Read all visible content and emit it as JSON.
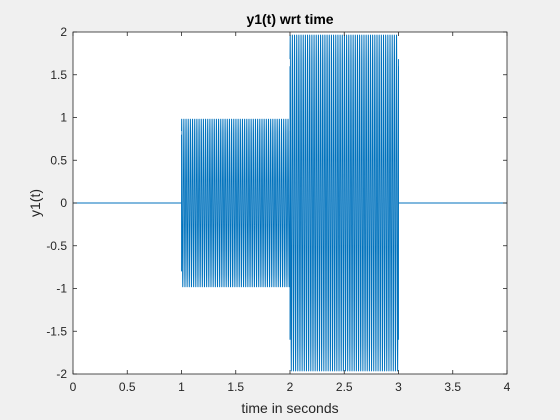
{
  "chart_data": {
    "type": "line",
    "title": "y1(t) wrt time",
    "xlabel": "time in seconds",
    "ylabel": "y1(t)",
    "xlim": [
      0,
      4
    ],
    "ylim": [
      -2,
      2
    ],
    "x_ticks": [
      0,
      0.5,
      1,
      1.5,
      2,
      2.5,
      3,
      3.5,
      4
    ],
    "x_tick_labels": [
      "0",
      "0.5",
      "1",
      "1.5",
      "2",
      "2.5",
      "3",
      "3.5",
      "4"
    ],
    "y_ticks": [
      -2,
      -1.5,
      -1,
      -0.5,
      0,
      0.5,
      1,
      1.5,
      2
    ],
    "y_tick_labels": [
      "-2",
      "-1.5",
      "-1",
      "-0.5",
      "0",
      "0.5",
      "1",
      "1.5",
      "2"
    ],
    "grid": false,
    "line_color": "#0072BD",
    "series": [
      {
        "segments": [
          {
            "t_start": 0,
            "t_end": 1,
            "amplitude": 0
          },
          {
            "t_start": 1,
            "t_end": 2,
            "amplitude": 1
          },
          {
            "t_start": 2,
            "t_end": 3,
            "amplitude": 2
          },
          {
            "t_start": 3,
            "t_end": 4,
            "amplitude": 0
          }
        ],
        "oscillations_per_second": 50
      }
    ]
  }
}
